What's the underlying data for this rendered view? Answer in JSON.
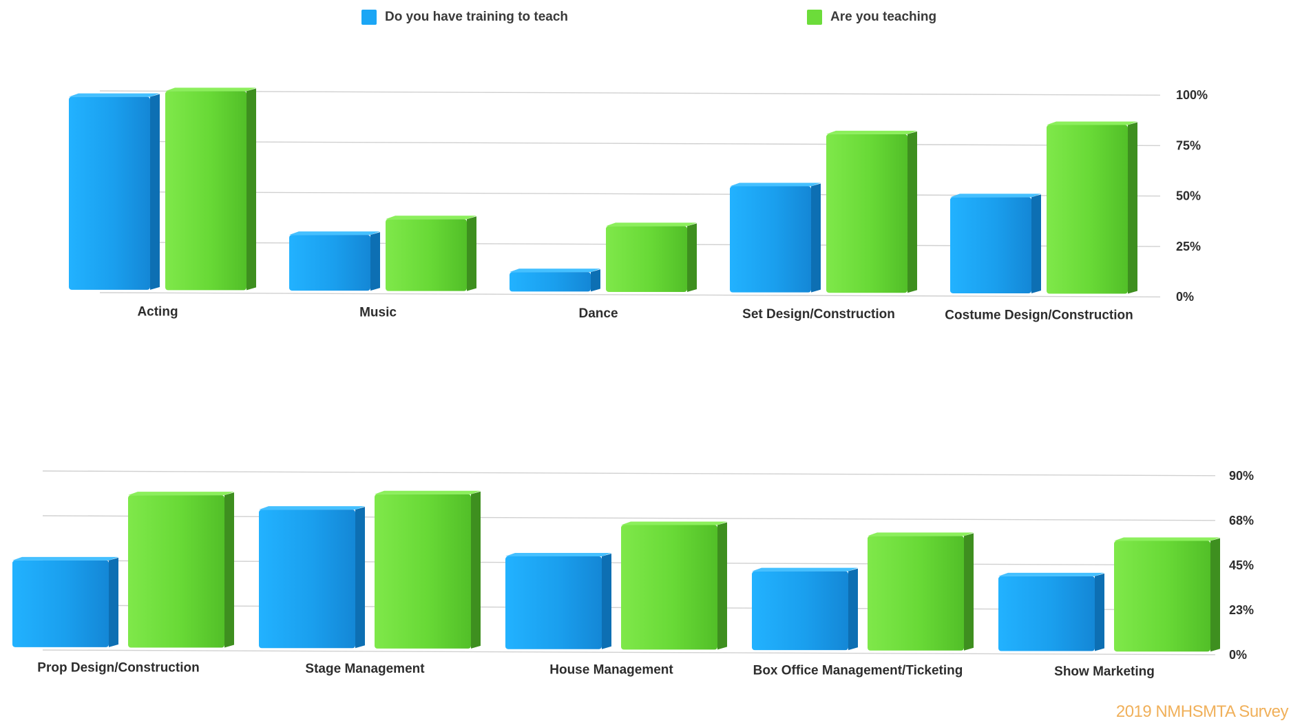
{
  "legend": {
    "training_label": "Do you have training to teach",
    "teaching_label": "Are you teaching"
  },
  "colors": {
    "training": "#1ba6f5",
    "training_dark": "#0d6fb3",
    "teaching": "#6cdc3a",
    "teaching_dark": "#3e8f1f",
    "grid": "#d0d0d0"
  },
  "footer": {
    "source_text": "2019 NMHSMTA Survey"
  },
  "chart_data": [
    {
      "type": "bar",
      "categories": [
        "Acting",
        "Music",
        "Dance",
        "Set Design/Construction",
        "Costume Design/Construction"
      ],
      "series": [
        {
          "name": "Do you have training to teach",
          "values": [
            97,
            29,
            11,
            54,
            49
          ]
        },
        {
          "name": "Are you teaching",
          "values": [
            100,
            37,
            34,
            80,
            85
          ]
        }
      ],
      "yticks": [
        "0%",
        "25%",
        "50%",
        "75%",
        "100%"
      ],
      "ylim": [
        0,
        100
      ],
      "grid": true,
      "legend_position": "top"
    },
    {
      "type": "bar",
      "categories": [
        "Prop Design/Construction",
        "Stage Management",
        "House Management",
        "Box Office Management/Ticketing",
        "Show Marketing"
      ],
      "series": [
        {
          "name": "Do you have training to teach",
          "values": [
            45,
            71,
            48,
            41,
            39
          ]
        },
        {
          "name": "Are you teaching",
          "values": [
            78,
            79,
            64,
            59,
            57
          ]
        }
      ],
      "yticks": [
        "0%",
        "23%",
        "45%",
        "68%",
        "90%"
      ],
      "ylim": [
        0,
        90
      ],
      "grid": true
    }
  ]
}
